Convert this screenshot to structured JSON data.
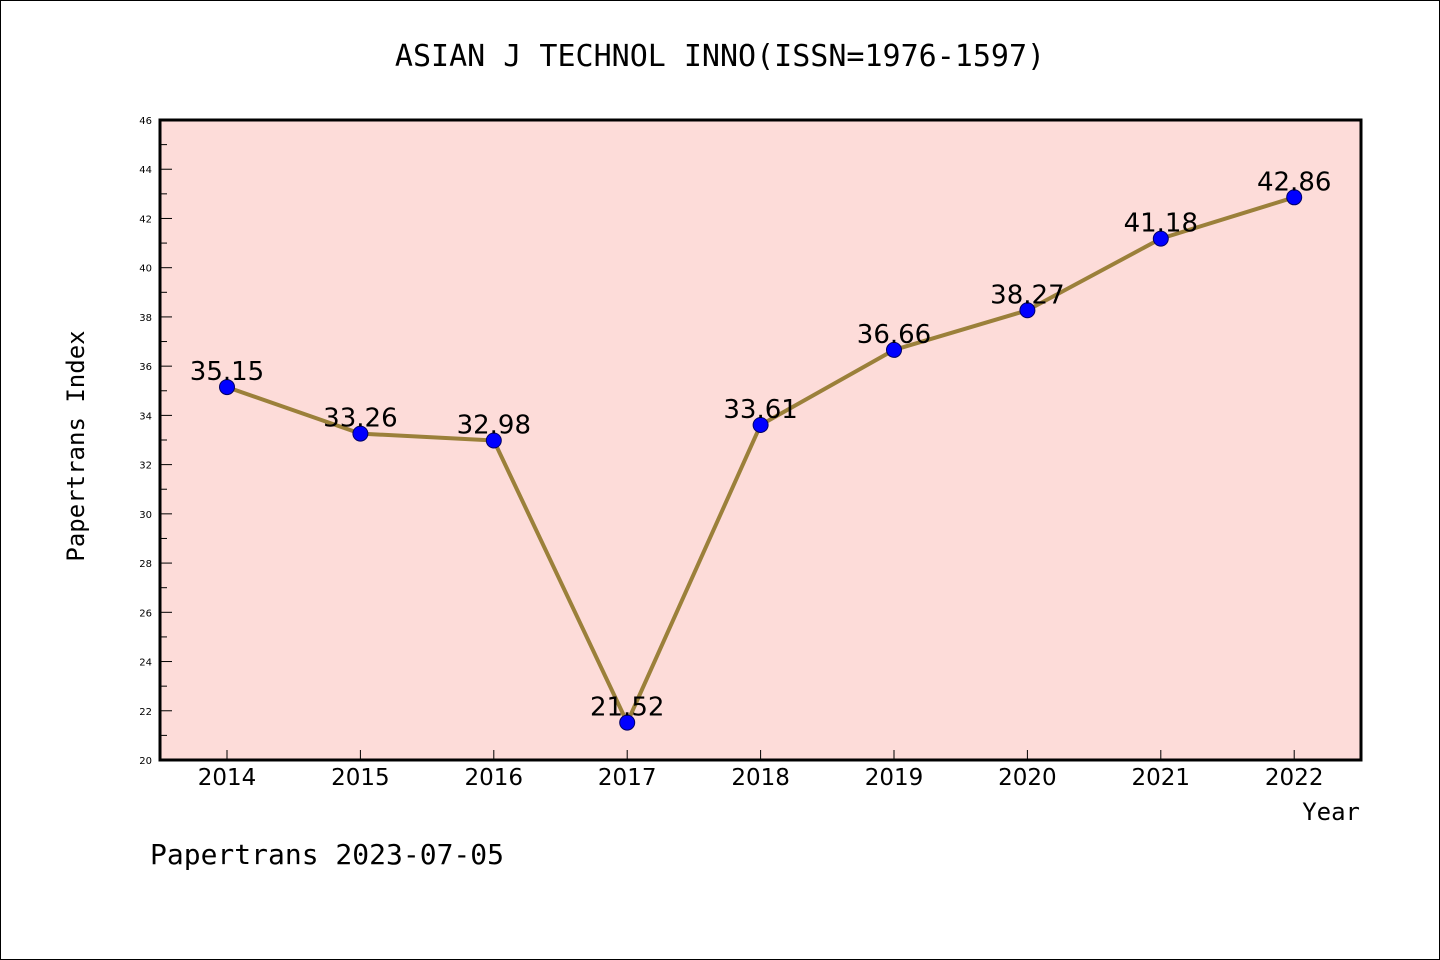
{
  "chart_data": {
    "type": "line",
    "title": "ASIAN J TECHNOL INNO(ISSN=1976-1597)",
    "xlabel": "Year",
    "ylabel": "Papertrans Index",
    "categories": [
      "2014",
      "2015",
      "2016",
      "2017",
      "2018",
      "2019",
      "2020",
      "2021",
      "2022"
    ],
    "series": [
      {
        "values": [
          35.15,
          33.26,
          32.98,
          21.52,
          33.61,
          36.66,
          38.27,
          41.18,
          42.86
        ]
      }
    ],
    "data_labels": [
      "35.15",
      "33.26",
      "32.98",
      "21.52",
      "33.61",
      "36.66",
      "38.27",
      "41.18",
      "42.86"
    ],
    "ylim": [
      20,
      46
    ],
    "yticks": [
      "20",
      "22",
      "24",
      "26",
      "28",
      "30",
      "32",
      "34",
      "36",
      "38",
      "40",
      "42",
      "44",
      "46"
    ],
    "grid": false,
    "colors": {
      "plot_background": "#fddcd9",
      "line": "#9b803a",
      "marker": "#0000ff"
    }
  },
  "footer": "Papertrans 2023-07-05"
}
